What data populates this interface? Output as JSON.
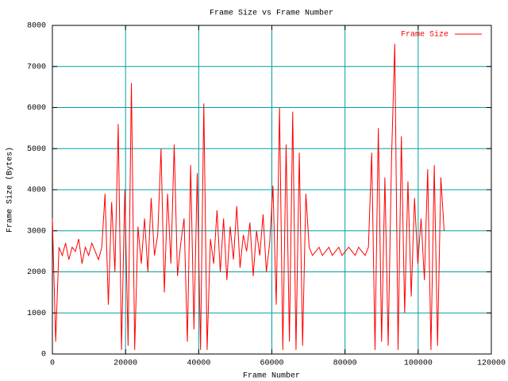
{
  "chart_data": {
    "type": "line",
    "title": "Frame Size vs Frame Number",
    "x_label": "Frame Number",
    "y_label": "Frame Size (Bytes)",
    "x": [
      0,
      900,
      1800,
      2700,
      3600,
      4500,
      5400,
      6300,
      7200,
      8100,
      9000,
      9900,
      10800,
      11700,
      12600,
      13500,
      14400,
      15300,
      16200,
      17100,
      18000,
      18900,
      19800,
      20700,
      21600,
      22500,
      23400,
      24300,
      25200,
      26100,
      27000,
      27900,
      28800,
      29700,
      30600,
      31500,
      32400,
      33300,
      34200,
      35100,
      36000,
      36900,
      37800,
      38700,
      39600,
      40500,
      41400,
      42300,
      43200,
      44100,
      45000,
      45900,
      46800,
      47700,
      48600,
      49500,
      50400,
      51300,
      52200,
      53100,
      54000,
      54900,
      55800,
      56700,
      57600,
      58500,
      59400,
      60300,
      61200,
      62100,
      63000,
      63900,
      64800,
      65700,
      66600,
      67500,
      68400,
      69300,
      70200,
      71100,
      72000,
      72900,
      73800,
      74700,
      75600,
      76500,
      77400,
      78300,
      79200,
      80100,
      81000,
      81900,
      82800,
      83700,
      84600,
      85500,
      86400,
      87300,
      88200,
      89100,
      90000,
      90900,
      91800,
      92700,
      93600,
      94500,
      95400,
      96300,
      97200,
      98100,
      99000,
      99900,
      100800,
      101700,
      102600,
      103500,
      104400,
      105300,
      106200,
      107100
    ],
    "series": [
      {
        "name": "Frame Size",
        "color": "#ff0000",
        "values": [
          3300,
          300,
          2600,
          2400,
          2700,
          2300,
          2600,
          2500,
          2800,
          2200,
          2600,
          2400,
          2700,
          2500,
          2300,
          2600,
          3900,
          1200,
          3700,
          2000,
          5600,
          100,
          4000,
          200,
          6600,
          100,
          3100,
          2200,
          3300,
          2000,
          3800,
          2400,
          2900,
          5000,
          1500,
          3900,
          2200,
          5100,
          1900,
          2700,
          3300,
          300,
          4600,
          600,
          4400,
          100,
          6100,
          100,
          2800,
          2200,
          3500,
          2000,
          3300,
          1800,
          3100,
          2300,
          3600,
          2100,
          2900,
          2500,
          3200,
          1900,
          3000,
          2400,
          3400,
          2000,
          2700,
          4100,
          1200,
          6000,
          100,
          5100,
          300,
          5900,
          100,
          4900,
          200,
          3900,
          2600,
          2400,
          2500,
          2600,
          2400,
          2500,
          2600,
          2400,
          2500,
          2600,
          2400,
          2500,
          2600,
          2500,
          2400,
          2600,
          2500,
          2400,
          2600,
          4900,
          100,
          5500,
          300,
          4300,
          200,
          4700,
          7550,
          100,
          5300,
          1000,
          4200,
          1400,
          3800,
          2200,
          3300,
          1800,
          4500,
          100,
          4600,
          200,
          4300,
          3000
        ]
      }
    ],
    "xlim": [
      0,
      120000
    ],
    "xticks": [
      0,
      20000,
      40000,
      60000,
      80000,
      100000,
      120000
    ],
    "ylim": [
      0,
      8000
    ],
    "yticks": [
      0,
      1000,
      2000,
      3000,
      4000,
      5000,
      6000,
      7000,
      8000
    ],
    "grid": true,
    "legend": "top-right"
  }
}
